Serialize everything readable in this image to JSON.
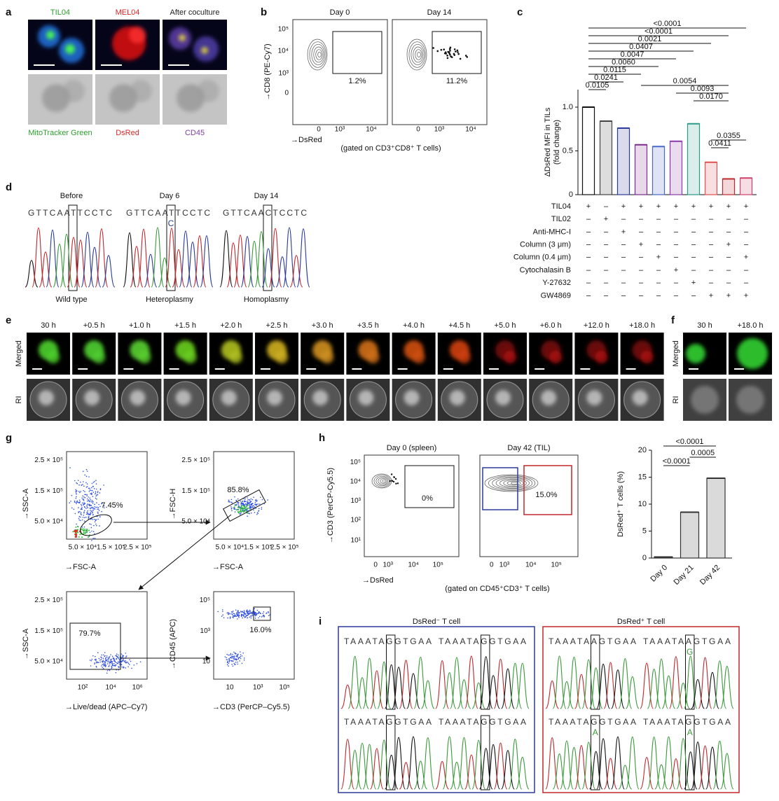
{
  "panels": {
    "a": {
      "letter": "a",
      "top_labels": [
        "TIL04",
        "MEL04",
        "After coculture"
      ],
      "bottom_labels": [
        "MitoTracker Green",
        "DsRed",
        "CD45"
      ]
    },
    "b": {
      "letter": "b",
      "ylabel": "→CD8 (PE-Cy7)",
      "xlabel": "→DsRed",
      "note": "(gated on CD3⁺CD8⁺ T cells)",
      "yticks": [
        "10⁵",
        "10⁴",
        "10³",
        "0"
      ],
      "xticks": [
        "0",
        "10³",
        "10⁴"
      ],
      "plots": [
        {
          "title": "Day 0",
          "gate": "1.2%"
        },
        {
          "title": "Day 14",
          "gate": "11.2%"
        }
      ]
    },
    "c": {
      "letter": "c",
      "conditions": [
        {
          "name": "TIL04",
          "signs": [
            "+",
            "–",
            "+",
            "+",
            "+",
            "+",
            "+",
            "+",
            "+",
            "+"
          ]
        },
        {
          "name": "TIL02",
          "signs": [
            "–",
            "+",
            "–",
            "–",
            "–",
            "–",
            "–",
            "–",
            "–",
            "–"
          ]
        },
        {
          "name": "Anti-MHC-I",
          "signs": [
            "–",
            "–",
            "+",
            "–",
            "–",
            "–",
            "–",
            "–",
            "–",
            "–"
          ]
        },
        {
          "name": "Column (3 μm)",
          "signs": [
            "–",
            "–",
            "–",
            "+",
            "–",
            "–",
            "–",
            "–",
            "+",
            "–"
          ]
        },
        {
          "name": "Column (0.4 μm)",
          "signs": [
            "–",
            "–",
            "–",
            "–",
            "+",
            "–",
            "–",
            "–",
            "–",
            "+"
          ]
        },
        {
          "name": "Cytochalasin B",
          "signs": [
            "–",
            "–",
            "–",
            "–",
            "–",
            "+",
            "–",
            "–",
            "–",
            "–"
          ]
        },
        {
          "name": "Y-27632",
          "signs": [
            "–",
            "–",
            "–",
            "–",
            "–",
            "–",
            "+",
            "–",
            "–",
            "–"
          ]
        },
        {
          "name": "GW4869",
          "signs": [
            "–",
            "–",
            "–",
            "–",
            "–",
            "–",
            "–",
            "+",
            "+",
            "+"
          ]
        }
      ]
    },
    "d": {
      "letter": "d",
      "groups": [
        {
          "title": "Before",
          "seq": "GTTCAATTCCTC",
          "label": "Wild type"
        },
        {
          "title": "Day 6",
          "seq": "GTTCAATTCCTC",
          "alt": "C",
          "label": "Heteroplasmy"
        },
        {
          "title": "Day 14",
          "seq": "GTTCAACTCCTC",
          "label": "Homoplasmy"
        }
      ]
    },
    "e": {
      "letter": "e",
      "times": [
        "30 h",
        "+0.5 h",
        "+1.0 h",
        "+1.5 h",
        "+2.0 h",
        "+2.5 h",
        "+3.0 h",
        "+3.5 h",
        "+4.0 h",
        "+4.5 h",
        "+5.0 h",
        "+6.0 h",
        "+12.0 h",
        "+18.0 h"
      ],
      "rows": [
        "Merged",
        "RI"
      ]
    },
    "f": {
      "letter": "f",
      "times": [
        "30 h",
        "+18.0 h"
      ],
      "rows": [
        "Merged",
        "RI"
      ]
    },
    "g": {
      "letter": "g",
      "plots": [
        {
          "ylabel": "→SSC-A",
          "xlabel": "→FSC-A",
          "yticks": [
            "2.5 × 10⁵",
            "1.5 × 10⁵",
            "5.0 × 10⁴"
          ],
          "xticks": [
            "5.0 × 10⁴",
            "1.5 × 10⁵",
            "2.5 × 10⁵"
          ],
          "gate": "7.45%"
        },
        {
          "ylabel": "→FSC-H",
          "xlabel": "→FSC-A",
          "yticks": [
            "2.5 × 10⁵",
            "1.5 × 10⁵",
            "5.0 × 10⁴"
          ],
          "xticks": [
            "5.0 × 10⁴",
            "1.5 × 10⁵",
            "2.5 × 10⁵"
          ],
          "gate": "85.8%"
        },
        {
          "ylabel": "→SSC-A",
          "xlabel": "→Live/dead (APC–Cy7)",
          "yticks": [
            "2.5 × 10⁵",
            "1.5 × 10⁵",
            "5.0 × 10⁴"
          ],
          "xticks": [
            "10²",
            "10⁴",
            "10⁶"
          ],
          "gate": "79.7%"
        },
        {
          "ylabel": "→CD45 (APC)",
          "xlabel": "→CD3 (PerCP–Cy5.5)",
          "yticks": [
            "10⁵",
            "10³",
            "10"
          ],
          "xticks": [
            "10",
            "10³",
            "10⁵"
          ],
          "gate": "16.0%"
        }
      ]
    },
    "h": {
      "letter": "h",
      "ylabel": "→CD3 (PerCP-Cy5.5)",
      "xlabel": "→DsRed",
      "note": "(gated on CD45⁺CD3⁺ T cells)",
      "yticks": [
        "10⁵",
        "10⁴",
        "10³",
        "10²",
        "10¹"
      ],
      "xticks": [
        "0",
        "10³",
        "10⁴",
        "10⁵"
      ],
      "plots": [
        {
          "title": "Day 0 (spleen)",
          "gate": "0%"
        },
        {
          "title": "Day 42 (TIL)",
          "gate": "15.0%"
        }
      ]
    },
    "i": {
      "letter": "i",
      "boxes": [
        {
          "title": "DsRed⁻ T cell",
          "color": "#2b3a9b",
          "seqs": [
            {
              "seq": "TAAATAGGTGAA"
            },
            {
              "seq": "TAAATAGGTGAA"
            },
            {
              "seq": "TAAATAGGTGAA"
            },
            {
              "seq": "TAAATAGGTGAA"
            }
          ]
        },
        {
          "title": "DsRed⁺ T cell",
          "color": "#c0282d",
          "seqs": [
            {
              "seq": "TAAATAAGTGAA"
            },
            {
              "seq": "TAAATAAGTGAA",
              "alt": "G"
            },
            {
              "seq": "TAAATAGGTGAA",
              "alt": "A"
            },
            {
              "seq": "TAAATAGGTGAA",
              "alt": "A"
            }
          ]
        }
      ]
    }
  },
  "chart_data": [
    {
      "type": "bar",
      "ylabel": [
        "ΔDsRed MFI in TILs",
        "(fold change)"
      ],
      "values": [
        1.0,
        0.84,
        0.76,
        0.57,
        0.55,
        0.61,
        0.81,
        0.37,
        0.18,
        0.19
      ],
      "colors": [
        "#111111",
        "#444444",
        "#2b3a9b",
        "#7b2a8c",
        "#4a68c8",
        "#8a3aa8",
        "#2a9a8a",
        "#e05050",
        "#c0282d",
        "#d0406a"
      ],
      "ylim": [
        0,
        1.2
      ],
      "yticks": [
        0,
        0.5,
        {
          "value": 1,
          "label": "1.0"
        }
      ],
      "annotations": [
        "<0.0001",
        "<0.0001",
        "0.0021",
        "0.0407",
        "0.0047",
        "0.0060",
        "0.0115",
        "0.0241",
        "0.0105",
        "0.0054",
        "0.0093",
        "0.0170",
        "0.0355",
        "0.0411"
      ]
    },
    {
      "type": "bar",
      "ylabel": "DsRed⁺ T cells (%)",
      "categories": [
        "Day 0",
        "Day 21",
        "Day 42"
      ],
      "values": [
        0.2,
        8.5,
        14.8
      ],
      "color": "#333333",
      "ylim": [
        0,
        20
      ],
      "yticks": [
        0,
        5,
        10,
        15,
        20
      ],
      "annotations": [
        "<0.0001",
        "0.0005",
        "<0.0001"
      ]
    }
  ]
}
